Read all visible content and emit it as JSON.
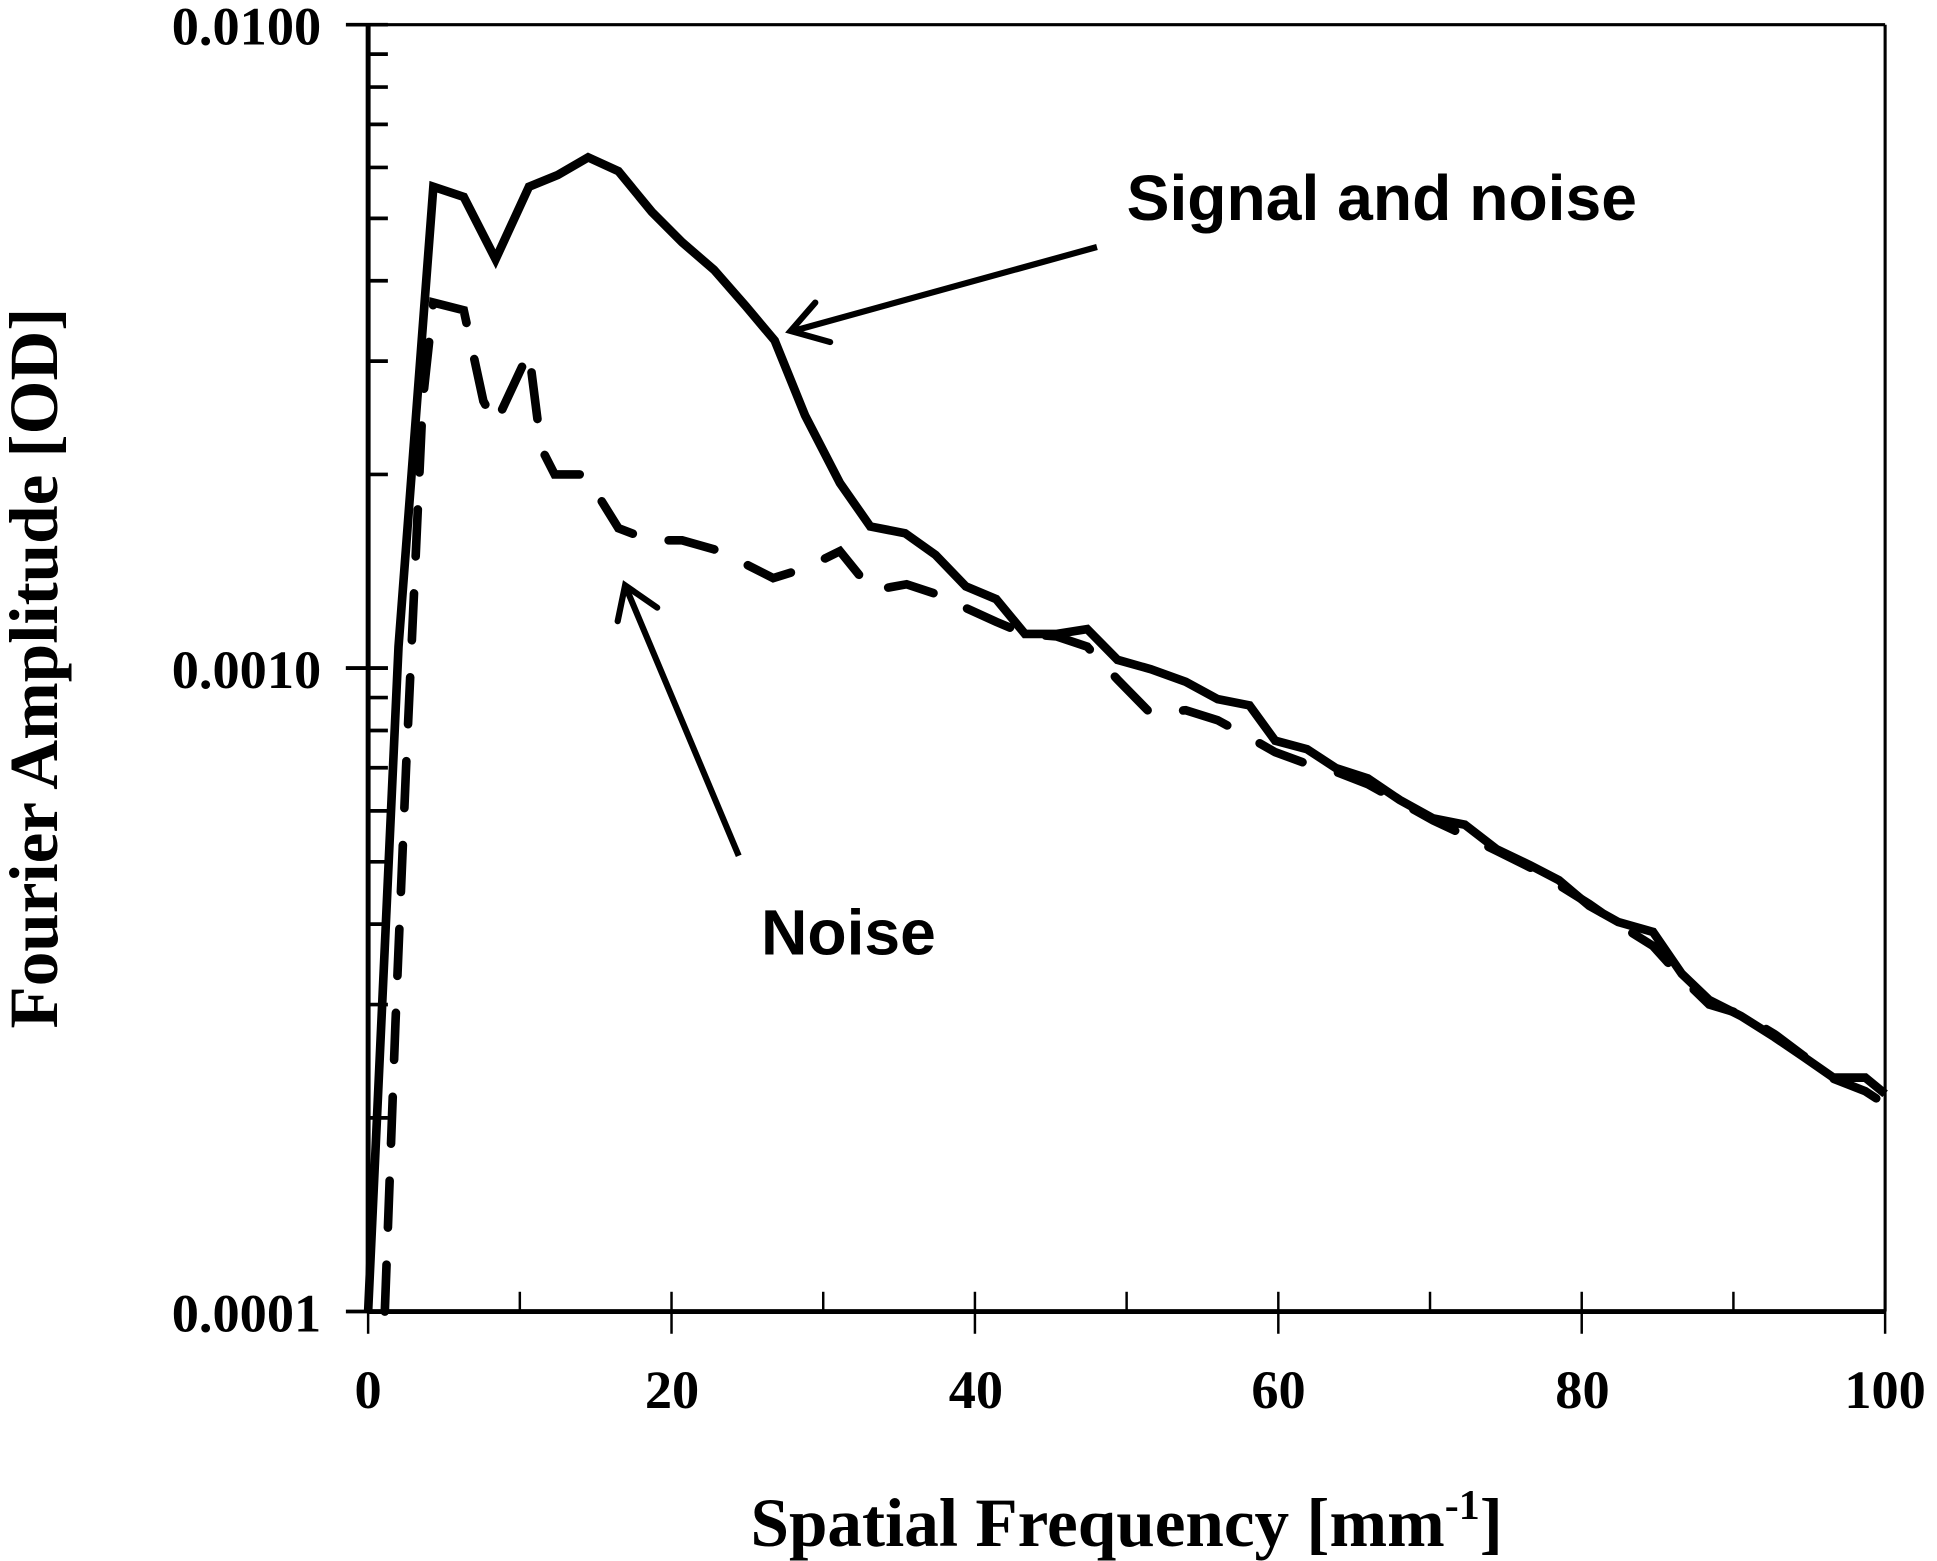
{
  "chart_data": {
    "type": "line",
    "title": "",
    "xlabel": "Spatial Frequency [mm",
    "xlabel_sup": "-1",
    "xlabel_suffix": "]",
    "ylabel": "Fourier Amplitude [OD]",
    "xlim": [
      0,
      100
    ],
    "ylim": [
      0.0001,
      0.01
    ],
    "yscale": "log",
    "grid": false,
    "x_ticks": [
      0,
      20,
      40,
      60,
      80,
      100
    ],
    "x_tick_labels": [
      "0",
      "20",
      "40",
      "60",
      "80",
      "100"
    ],
    "y_ticks": [
      0.0001,
      0.001,
      0.01
    ],
    "y_tick_labels": [
      "0.0001",
      "0.0010",
      "0.0100"
    ],
    "series": [
      {
        "name": "Signal and noise",
        "style": "solid",
        "x": [
          0.0,
          2.0,
          4.3,
          6.3,
          8.4,
          10.6,
          12.5,
          14.5,
          16.5,
          18.7,
          20.7,
          22.8,
          24.9,
          26.8,
          28.8,
          31.1,
          33.1,
          35.4,
          37.4,
          39.4,
          41.4,
          43.3,
          45.4,
          47.4,
          49.4,
          51.6,
          53.9,
          56.0,
          58.1,
          59.8,
          61.9,
          63.8,
          65.9,
          68.0,
          70.2,
          72.3,
          74.4,
          76.6,
          78.5,
          80.5,
          82.4,
          84.7,
          86.6,
          88.4,
          90.5,
          92.7,
          94.6,
          96.6,
          98.7,
          100.0
        ],
        "y": [
          0.0001,
          0.00108,
          0.0056,
          0.0054,
          0.00432,
          0.0056,
          0.00584,
          0.00622,
          0.00592,
          0.00512,
          0.00459,
          0.00416,
          0.00365,
          0.00323,
          0.00247,
          0.00194,
          0.00166,
          0.00162,
          0.0015,
          0.00134,
          0.00128,
          0.00113,
          0.00113,
          0.00115,
          0.00103,
          0.000996,
          0.000952,
          0.000895,
          0.000875,
          0.000771,
          0.000748,
          0.000699,
          0.000674,
          0.000624,
          0.000584,
          0.000571,
          0.000523,
          0.000494,
          0.000468,
          0.000427,
          0.000403,
          0.000389,
          0.000335,
          0.000305,
          0.000288,
          0.000267,
          0.000249,
          0.000231,
          0.000231,
          0.000218
        ]
      },
      {
        "name": "Noise",
        "style": "dashed",
        "x": [
          1.1,
          1.8,
          2.5,
          3.6,
          4.3,
          6.3,
          7.6,
          8.4,
          10.6,
          11.4,
          12.3,
          14.3,
          16.5,
          18.6,
          20.7,
          22.8,
          24.9,
          26.7,
          28.8,
          31.1,
          33.2,
          35.5,
          37.6,
          39.4,
          41.4,
          43.3,
          45.4,
          47.4,
          49.4,
          51.6,
          53.9,
          56.0,
          58.1,
          59.8,
          61.9,
          63.8,
          65.9,
          68.0,
          70.2,
          72.3,
          74.4,
          76.6,
          78.5,
          80.5,
          82.4,
          84.7,
          86.6,
          88.4,
          90.5,
          92.7,
          94.6,
          96.6,
          98.7,
          100.0
        ],
        "y": [
          0.0001,
          0.00028,
          0.0007,
          0.0026,
          0.0037,
          0.0036,
          0.0026,
          0.0024,
          0.0031,
          0.0022,
          0.002,
          0.002,
          0.00165,
          0.00158,
          0.00158,
          0.00153,
          0.00145,
          0.00138,
          0.00143,
          0.00152,
          0.00132,
          0.00135,
          0.0013,
          0.00124,
          0.00118,
          0.00113,
          0.00112,
          0.00108,
          0.00096,
          0.00085,
          0.00086,
          0.00083,
          0.00078,
          0.00074,
          0.00071,
          0.00069,
          0.00066,
          0.00062,
          0.00058,
          0.00055,
          0.00052,
          0.00049,
          0.00046,
          0.00043,
          0.0004,
          0.00037,
          0.00033,
          0.0003,
          0.00029,
          0.00027,
          0.00025,
          0.00023,
          0.00022,
          0.00021
        ]
      }
    ],
    "annotations": [
      {
        "text": "Signal and noise",
        "points_to_series": "Signal and noise"
      },
      {
        "text": "Noise",
        "points_to_series": "Noise"
      }
    ]
  },
  "labels": {
    "signal_annotation": "Signal and noise",
    "noise_annotation": "Noise"
  }
}
